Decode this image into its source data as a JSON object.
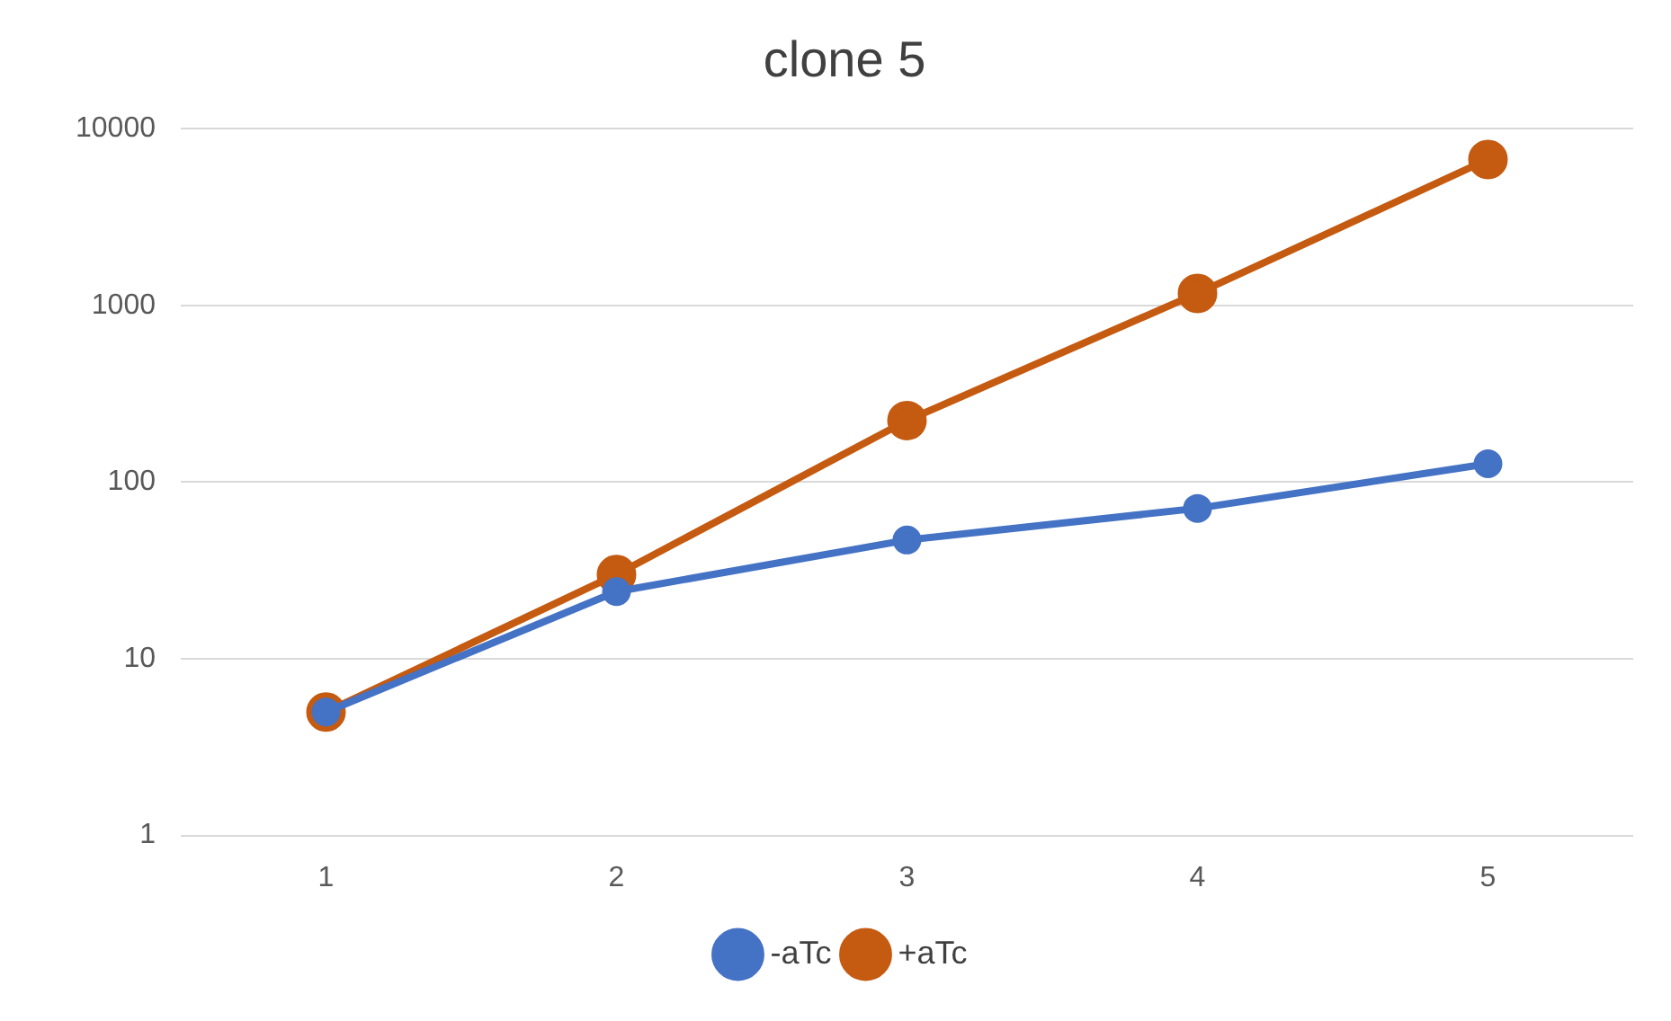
{
  "chart_data": {
    "type": "line",
    "title": "clone 5",
    "categories": [
      "1",
      "2",
      "3",
      "4",
      "5"
    ],
    "series": [
      {
        "name": "-aTc",
        "color": "#4472c4",
        "values": [
          5,
          24,
          47,
          71,
          127
        ]
      },
      {
        "name": "+aTc",
        "color": "#c55a11",
        "values": [
          5,
          30,
          223,
          1170,
          6700
        ]
      }
    ],
    "ylim": [
      1,
      10000
    ],
    "yticks": [
      1,
      10,
      100,
      1000,
      10000
    ],
    "log": true,
    "grid": "y",
    "legend": "bottom",
    "marker": "circle",
    "line_style": "solid"
  }
}
